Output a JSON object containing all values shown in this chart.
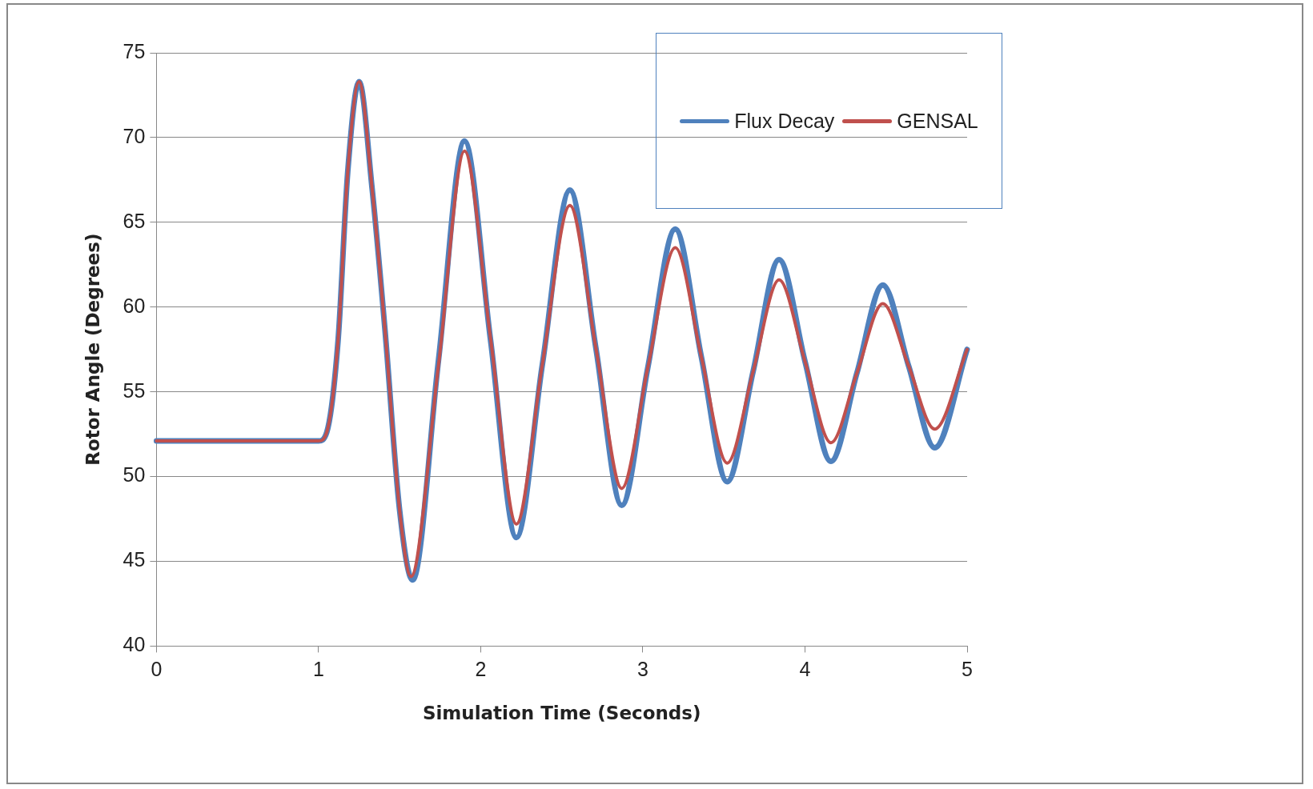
{
  "chart_data": {
    "type": "line",
    "xlabel": "Simulation Time (Seconds)",
    "ylabel": "Rotor Angle (Degrees)",
    "xlim": [
      0,
      5
    ],
    "xticks": [
      0,
      1,
      2,
      3,
      4,
      5
    ],
    "ylim": [
      40,
      75
    ],
    "yticks": [
      40,
      45,
      50,
      55,
      60,
      65,
      70,
      75
    ],
    "grid": "y",
    "legend": "top right",
    "marker": "none",
    "line_style": "solid",
    "series": [
      {
        "name": "Flux Decay",
        "color": "#4f81bd",
        "x": [
          0,
          1,
          1.05,
          1.12,
          1.18,
          1.25,
          1.33,
          1.41,
          1.5,
          1.58,
          1.74,
          1.9,
          2.06,
          2.22,
          2.38,
          2.55,
          2.71,
          2.87,
          3.03,
          3.2,
          3.36,
          3.52,
          3.68,
          3.84,
          4,
          4.16,
          4.32,
          4.48,
          4.64,
          4.8,
          5
        ],
        "values": [
          52.1,
          52.1,
          52.6,
          58,
          68,
          73.3,
          67,
          58.6,
          48,
          43.9,
          56.9,
          69.8,
          58.1,
          46.4,
          56.6,
          66.9,
          57.6,
          48.3,
          56.4,
          64.6,
          57.1,
          49.7,
          56.2,
          62.8,
          56.8,
          50.9,
          56.1,
          61.3,
          56.5,
          51.7,
          57.5
        ]
      },
      {
        "name": "GENSAL",
        "color": "#c0504d",
        "x": [
          0,
          1,
          1.05,
          1.12,
          1.18,
          1.25,
          1.33,
          1.41,
          1.5,
          1.57,
          1.74,
          1.9,
          2.06,
          2.22,
          2.38,
          2.55,
          2.71,
          2.87,
          3.03,
          3.2,
          3.36,
          3.52,
          3.68,
          3.84,
          4,
          4.16,
          4.32,
          4.48,
          4.64,
          4.8,
          5
        ],
        "values": [
          52.1,
          52.1,
          52.6,
          58,
          68,
          73.3,
          67,
          58.6,
          48,
          44.1,
          56.6,
          69.2,
          58.2,
          47.2,
          56.6,
          66,
          57.6,
          49.3,
          56.4,
          63.5,
          57.1,
          50.8,
          56.2,
          61.6,
          56.8,
          52,
          56.1,
          60.2,
          56.5,
          52.8,
          57.5
        ]
      }
    ]
  }
}
